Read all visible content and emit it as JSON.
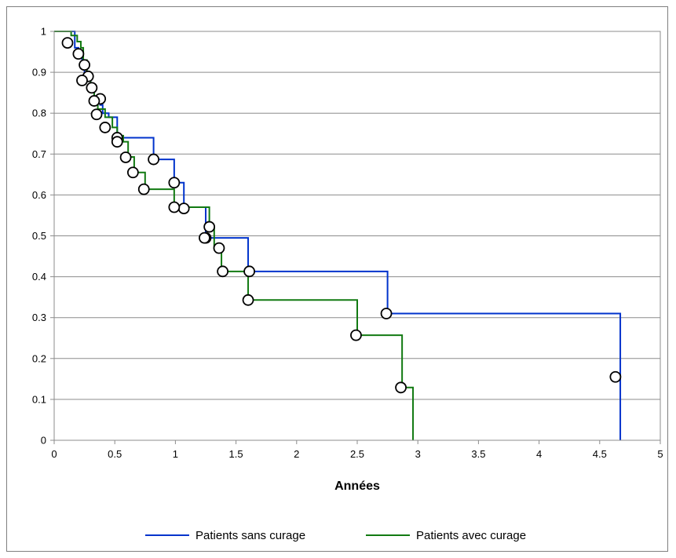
{
  "chart_data": {
    "type": "line",
    "xlabel": "Années",
    "ylabel": "",
    "xlim": [
      0,
      5
    ],
    "ylim": [
      0,
      1
    ],
    "x_ticks": [
      "0",
      "0.5",
      "1",
      "1.5",
      "2",
      "2.5",
      "3",
      "3.5",
      "4",
      "4.5",
      "5"
    ],
    "y_ticks": [
      "0",
      "0.1",
      "0.2",
      "0.3",
      "0.4",
      "0.5",
      "0.6",
      "0.7",
      "0.8",
      "0.9",
      "1"
    ],
    "grid": "horizontal",
    "legend_position": "bottom",
    "series": [
      {
        "name": "Patients sans curage",
        "color": "#0033cc",
        "steps": [
          [
            0,
            1
          ],
          [
            0.17,
            0.96
          ],
          [
            0.2,
            0.94
          ],
          [
            0.23,
            0.92
          ],
          [
            0.25,
            0.9
          ],
          [
            0.28,
            0.88
          ],
          [
            0.3,
            0.86
          ],
          [
            0.33,
            0.84
          ],
          [
            0.38,
            0.82
          ],
          [
            0.4,
            0.8
          ],
          [
            0.45,
            0.79
          ],
          [
            0.52,
            0.74
          ],
          [
            0.82,
            0.687
          ],
          [
            0.99,
            0.63
          ],
          [
            1.07,
            0.57
          ],
          [
            1.25,
            0.52
          ],
          [
            1.25,
            0.495
          ],
          [
            1.6,
            0.413
          ],
          [
            2.75,
            0.31
          ],
          [
            4.67,
            0.0
          ]
        ],
        "censored": [
          [
            0.11,
            0.972
          ],
          [
            0.2,
            0.945
          ],
          [
            0.25,
            0.918
          ],
          [
            0.28,
            0.89
          ],
          [
            0.38,
            0.835
          ],
          [
            0.52,
            0.74
          ],
          [
            0.82,
            0.687
          ],
          [
            0.99,
            0.63
          ],
          [
            1.07,
            0.567
          ],
          [
            1.28,
            0.522
          ],
          [
            1.25,
            0.495
          ],
          [
            1.61,
            0.413
          ],
          [
            2.74,
            0.31
          ],
          [
            4.63,
            0.155
          ]
        ]
      },
      {
        "name": "Patients avec curage",
        "color": "#127a12",
        "steps": [
          [
            0,
            1
          ],
          [
            0.14,
            0.99
          ],
          [
            0.19,
            0.975
          ],
          [
            0.22,
            0.96
          ],
          [
            0.24,
            0.93
          ],
          [
            0.27,
            0.9
          ],
          [
            0.3,
            0.87
          ],
          [
            0.33,
            0.84
          ],
          [
            0.36,
            0.81
          ],
          [
            0.42,
            0.79
          ],
          [
            0.48,
            0.765
          ],
          [
            0.52,
            0.745
          ],
          [
            0.57,
            0.73
          ],
          [
            0.61,
            0.693
          ],
          [
            0.66,
            0.655
          ],
          [
            0.75,
            0.614
          ],
          [
            0.99,
            0.57
          ],
          [
            1.28,
            0.522
          ],
          [
            1.32,
            0.47
          ],
          [
            1.38,
            0.413
          ],
          [
            1.6,
            0.343
          ],
          [
            2.5,
            0.257
          ],
          [
            2.87,
            0.129
          ],
          [
            2.96,
            0.0
          ]
        ],
        "censored": [
          [
            0.23,
            0.88
          ],
          [
            0.31,
            0.862
          ],
          [
            0.33,
            0.83
          ],
          [
            0.35,
            0.797
          ],
          [
            0.42,
            0.765
          ],
          [
            0.52,
            0.73
          ],
          [
            0.59,
            0.692
          ],
          [
            0.65,
            0.655
          ],
          [
            0.74,
            0.614
          ],
          [
            0.99,
            0.57
          ],
          [
            1.24,
            0.495
          ],
          [
            1.36,
            0.47
          ],
          [
            1.39,
            0.413
          ],
          [
            1.6,
            0.343
          ],
          [
            2.49,
            0.257
          ],
          [
            2.86,
            0.129
          ]
        ]
      }
    ]
  }
}
